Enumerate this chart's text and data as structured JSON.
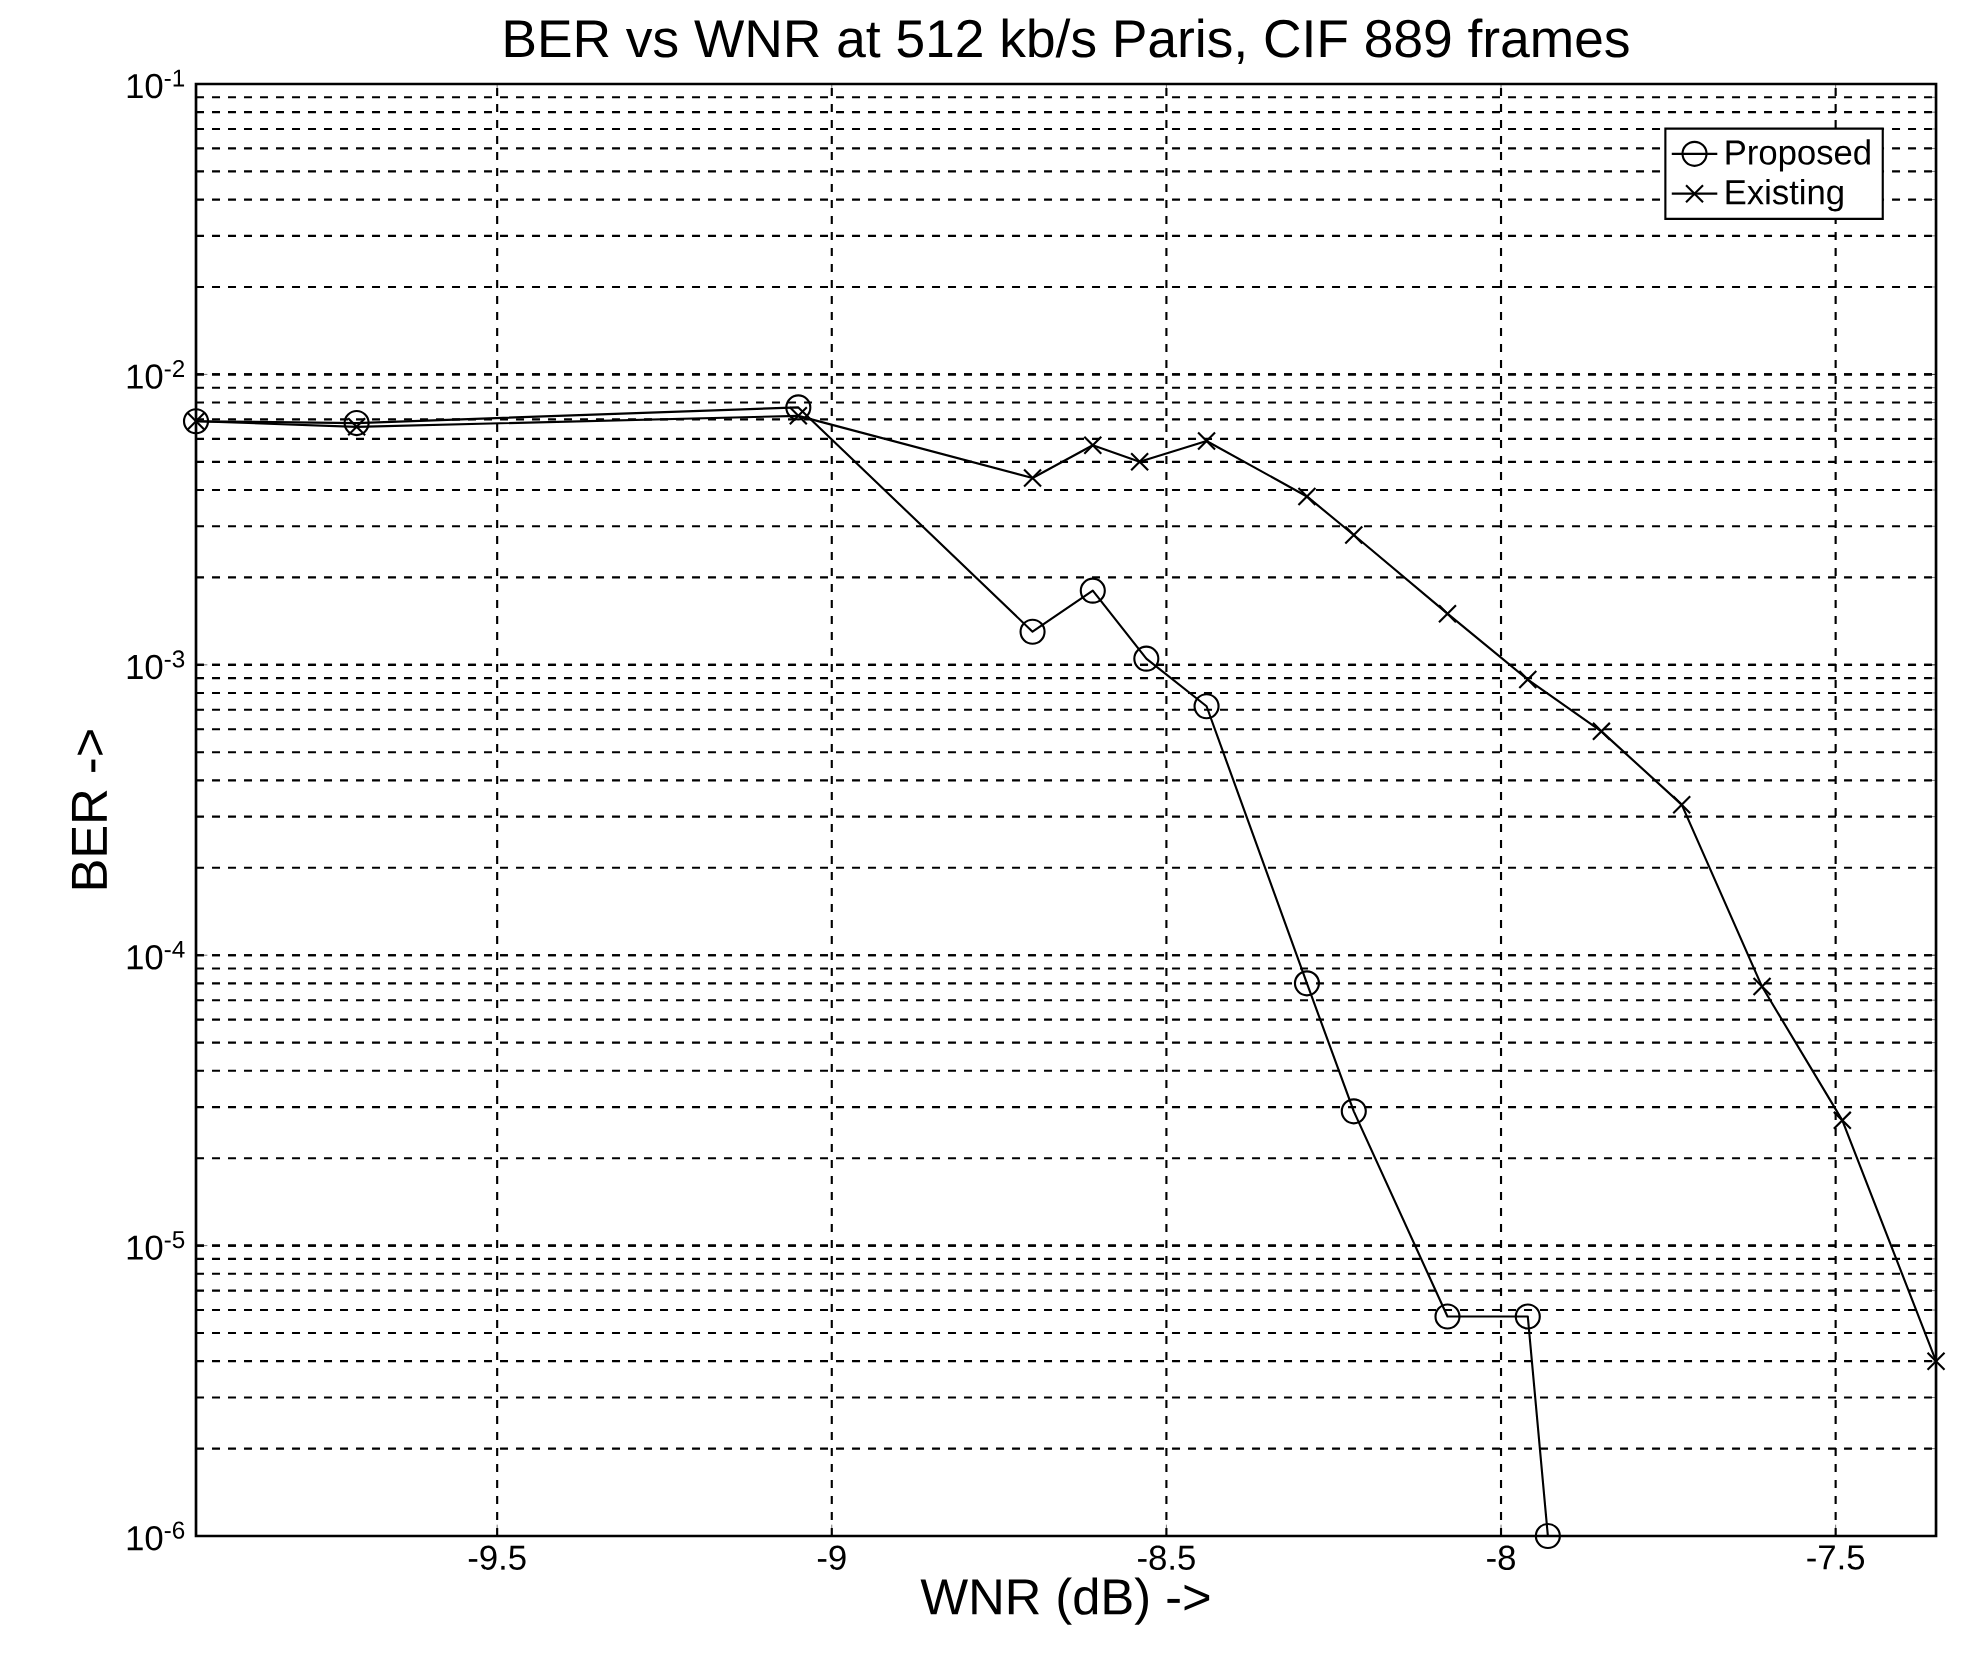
{
  "chart_data": {
    "type": "line",
    "title": "BER vs WNR at 512 kb/s Paris, CIF 889 frames",
    "xlabel": "WNR (dB) ->",
    "ylabel": "BER ->",
    "xlim": [
      -9.95,
      -7.35
    ],
    "ylim": [
      1e-06,
      0.1
    ],
    "log": "y",
    "grid": true,
    "legend": "top right",
    "line_style": "solid",
    "xticks": [
      -9.5,
      -9,
      -8.5,
      -8,
      -7.5
    ],
    "yticks": [
      {
        "value": 1e-06,
        "label": "10$^{-6}$"
      },
      {
        "value": 1e-05,
        "label": "10$^{-5}$"
      },
      {
        "value": 0.0001,
        "label": "10$^{-4}$"
      },
      {
        "value": 0.001,
        "label": "10$^{-3}$"
      },
      {
        "value": 0.01,
        "label": "10$^{-2}$"
      },
      {
        "value": 0.1,
        "label": "10$^{-1}$"
      }
    ],
    "series": [
      {
        "name": "Proposed",
        "color": "#000000",
        "marker": "circle",
        "x": [
          -9.95,
          -9.71,
          -9.05,
          -8.7,
          -8.61,
          -8.53,
          -8.44,
          -8.29,
          -8.22,
          -8.08,
          -7.96,
          -7.93
        ],
        "values": [
          0.0069,
          0.0068,
          0.0077,
          0.0013,
          0.0018,
          0.00105,
          0.00072,
          8e-05,
          2.9e-05,
          5.7e-06,
          5.7e-06,
          1e-06
        ]
      },
      {
        "name": "Existing",
        "color": "#000000",
        "marker": "cross",
        "x": [
          -9.95,
          -9.71,
          -9.05,
          -8.7,
          -8.61,
          -8.54,
          -8.44,
          -8.29,
          -8.22,
          -8.08,
          -7.96,
          -7.85,
          -7.73,
          -7.61,
          -7.49,
          -7.35
        ],
        "values": [
          0.0069,
          0.0066,
          0.0072,
          0.0044,
          0.0057,
          0.005,
          0.0059,
          0.0038,
          0.0028,
          0.0015,
          0.00089,
          0.00059,
          0.00033,
          7.8e-05,
          2.7e-05,
          4e-06
        ]
      }
    ]
  }
}
